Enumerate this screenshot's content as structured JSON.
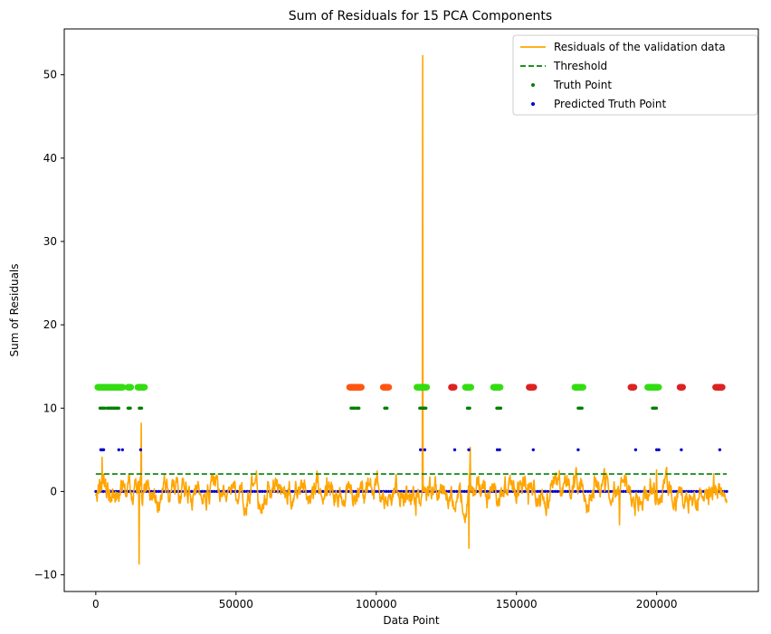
{
  "chart_data": {
    "type": "line",
    "title": "Sum of Residuals for 15 PCA Components",
    "xlabel": "Data Point",
    "ylabel": "Sum of Residuals",
    "xlim": [
      -11250,
      236250
    ],
    "ylim": [
      -12,
      55.5
    ],
    "xticks": [
      0,
      50000,
      100000,
      150000,
      200000
    ],
    "yticks": [
      -10,
      0,
      10,
      20,
      30,
      40,
      50
    ],
    "grid": false,
    "legend_position": "top-right",
    "legend": [
      {
        "label": "Residuals of the validation data",
        "kind": "line",
        "color": "#FFA500"
      },
      {
        "label": "Threshold",
        "kind": "dashed",
        "color": "#008000"
      },
      {
        "label": "Truth Point",
        "kind": "dot",
        "color": "#008000"
      },
      {
        "label": "Predicted Truth Point",
        "kind": "dot",
        "color": "#0000CD"
      }
    ],
    "residual_series": {
      "name": "Residuals of the validation data",
      "color": "#FFA500",
      "x_range": [
        0,
        225000
      ],
      "baseline_amplitude": 1.3,
      "spikes": [
        {
          "x": 2300,
          "y": 4.1
        },
        {
          "x": 15500,
          "y": -8.7
        },
        {
          "x": 16200,
          "y": 8.2
        },
        {
          "x": 116500,
          "y": 52.3
        },
        {
          "x": 133000,
          "y": -6.8
        },
        {
          "x": 133500,
          "y": 5.3
        },
        {
          "x": 186800,
          "y": -4.0
        },
        {
          "x": 200000,
          "y": 2.6
        }
      ]
    },
    "threshold": {
      "name": "Threshold",
      "y": 2.1,
      "x_range": [
        0,
        225000
      ],
      "color": "#008000"
    },
    "truth_points": {
      "name": "Truth Point",
      "y": 10,
      "color": "#008000",
      "ranges": [
        [
          1500,
          3200
        ],
        [
          4000,
          8200
        ],
        [
          11500,
          12500
        ],
        [
          15500,
          16500
        ],
        [
          91000,
          92500
        ],
        [
          93000,
          94000
        ],
        [
          103000,
          104000
        ],
        [
          115500,
          118000
        ],
        [
          132500,
          133500
        ],
        [
          143000,
          144500
        ],
        [
          172000,
          173500
        ],
        [
          198500,
          200000
        ]
      ]
    },
    "predicted_points": {
      "name": "Predicted Truth Point",
      "y_high": 5,
      "y_low": 0,
      "color": "#0000CD",
      "high_points": [
        1800,
        2300,
        2800,
        8200,
        9500,
        16000,
        115800,
        117300,
        128000,
        133000,
        143200,
        144000,
        156000,
        172000,
        192500,
        200000,
        200800,
        208800,
        222500
      ],
      "low_range": [
        0,
        225000
      ]
    },
    "label_strips": {
      "y": 12.5,
      "segments": [
        {
          "from": 700,
          "to": 9700,
          "color": "#33DD11"
        },
        {
          "from": 11500,
          "to": 12600,
          "color": "#33DD11"
        },
        {
          "from": 15000,
          "to": 17500,
          "color": "#33DD11"
        },
        {
          "from": 90500,
          "to": 94800,
          "color": "#FF5511"
        },
        {
          "from": 102500,
          "to": 104500,
          "color": "#FF5511"
        },
        {
          "from": 114500,
          "to": 118000,
          "color": "#33DD11"
        },
        {
          "from": 126800,
          "to": 127800,
          "color": "#DD2222"
        },
        {
          "from": 131800,
          "to": 133800,
          "color": "#33DD11"
        },
        {
          "from": 141800,
          "to": 144200,
          "color": "#33DD11"
        },
        {
          "from": 154500,
          "to": 156300,
          "color": "#DD2222"
        },
        {
          "from": 170800,
          "to": 173800,
          "color": "#33DD11"
        },
        {
          "from": 190800,
          "to": 192000,
          "color": "#DD2222"
        },
        {
          "from": 196800,
          "to": 200800,
          "color": "#33DD11"
        },
        {
          "from": 208300,
          "to": 209300,
          "color": "#DD2222"
        },
        {
          "from": 221000,
          "to": 223500,
          "color": "#DD2222"
        }
      ]
    }
  }
}
